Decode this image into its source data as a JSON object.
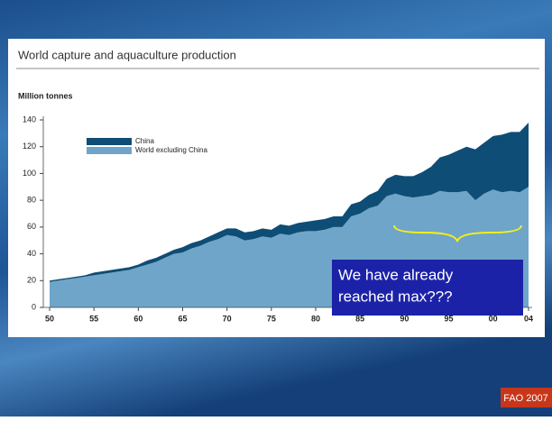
{
  "chart_data": {
    "type": "area",
    "title": "World capture and aquaculture production",
    "y_label": "Million tonnes",
    "x": [
      1950,
      1951,
      1952,
      1953,
      1954,
      1955,
      1956,
      1957,
      1958,
      1959,
      1960,
      1961,
      1962,
      1963,
      1964,
      1965,
      1966,
      1967,
      1968,
      1969,
      1970,
      1971,
      1972,
      1973,
      1974,
      1975,
      1976,
      1977,
      1978,
      1979,
      1980,
      1981,
      1982,
      1983,
      1984,
      1985,
      1986,
      1987,
      1988,
      1989,
      1990,
      1991,
      1992,
      1993,
      1994,
      1995,
      1996,
      1997,
      1998,
      1999,
      2000,
      2001,
      2002,
      2003,
      2004
    ],
    "series": [
      {
        "name": "China",
        "color": "#0e4d76",
        "values": [
          1,
          1,
          1,
          1,
          1,
          2,
          2,
          2,
          2,
          2,
          2,
          3,
          3,
          3,
          3,
          4,
          4,
          4,
          4,
          5,
          5,
          6,
          6,
          6,
          6,
          6,
          7,
          7,
          7,
          7,
          8,
          8,
          8,
          8,
          9,
          9,
          10,
          11,
          13,
          14,
          15,
          16,
          18,
          21,
          25,
          28,
          31,
          33,
          38,
          38,
          40,
          43,
          44,
          45,
          48
        ]
      },
      {
        "name": "World excluding China",
        "color": "#6fa5c9",
        "values": [
          19,
          20,
          21,
          22,
          23,
          24,
          25,
          26,
          27,
          28,
          30,
          32,
          34,
          37,
          40,
          41,
          44,
          46,
          49,
          51,
          54,
          53,
          50,
          51,
          53,
          52,
          55,
          54,
          56,
          57,
          57,
          58,
          60,
          60,
          68,
          70,
          74,
          76,
          83,
          85,
          83,
          82,
          83,
          84,
          87,
          86,
          86,
          87,
          80,
          85,
          88,
          86,
          87,
          86,
          90
        ]
      }
    ],
    "ylim": [
      0,
      140
    ],
    "yticks": [
      0,
      20,
      40,
      60,
      80,
      100,
      120,
      140
    ],
    "xlim": [
      1950,
      2004
    ],
    "xticks": [
      {
        "value": 1950,
        "label": "50"
      },
      {
        "value": 1955,
        "label": "55"
      },
      {
        "value": 1960,
        "label": "60"
      },
      {
        "value": 1965,
        "label": "65"
      },
      {
        "value": 1970,
        "label": "70"
      },
      {
        "value": 1975,
        "label": "75"
      },
      {
        "value": 1980,
        "label": "80"
      },
      {
        "value": 1985,
        "label": "85"
      },
      {
        "value": 1990,
        "label": "90"
      },
      {
        "value": 1995,
        "label": "95"
      },
      {
        "value": 2000,
        "label": "00"
      },
      {
        "value": 2004,
        "label": "04"
      }
    ],
    "annotation": [
      "We have already",
      "reached max???"
    ],
    "source": "FAO 2007"
  }
}
